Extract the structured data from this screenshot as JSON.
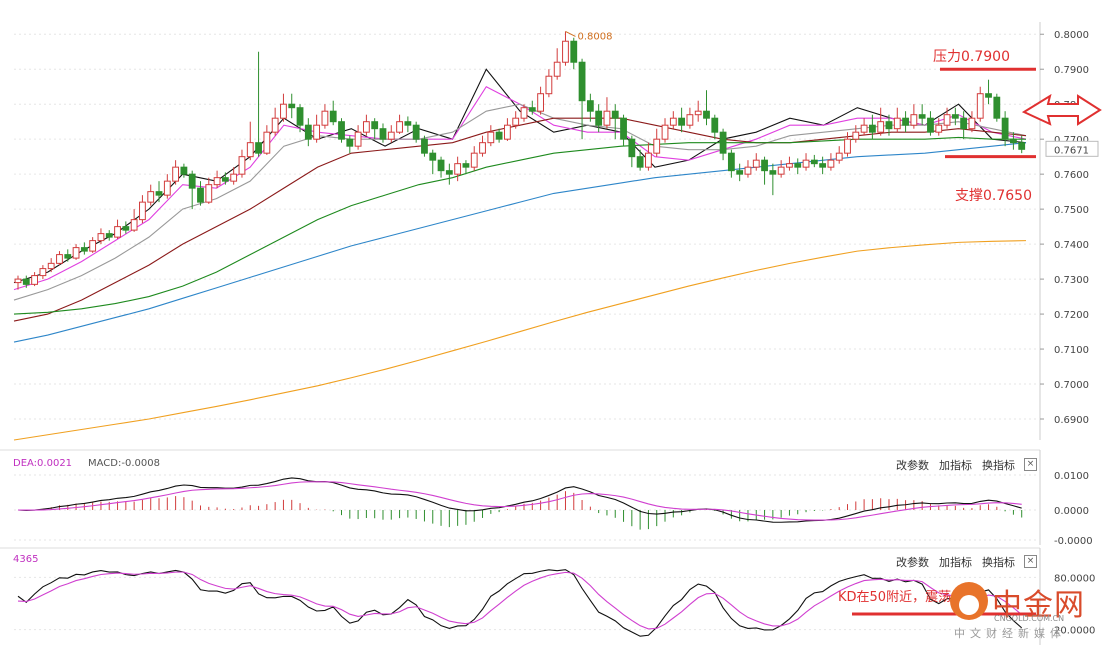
{
  "chart_data": {
    "type": "candlestick",
    "symbol_pair_note": "",
    "price_axis": {
      "ticks": [
        "0.8000",
        "0.7900",
        "0.7800",
        "0.7700",
        "0.7600",
        "0.7500",
        "0.7400",
        "0.7300",
        "0.7200",
        "0.7100",
        "0.7000",
        "0.6900"
      ],
      "range": [
        0.684,
        0.8035
      ],
      "current_price_label": "0.7671",
      "current_price": 0.7671
    },
    "high_marker": {
      "label": "0.8008",
      "value": 0.8008
    },
    "annotations": {
      "resistance": {
        "text": "压力0.7900",
        "value": 0.79
      },
      "support": {
        "text": "支撑0.7650",
        "value": 0.765
      },
      "kd_note": "KD在50附近，震荡"
    },
    "candles_approx": [
      [
        0.729,
        0.73,
        0.727,
        0.731
      ],
      [
        0.73,
        0.7285,
        0.7275,
        0.731
      ],
      [
        0.7285,
        0.731,
        0.728,
        0.732
      ],
      [
        0.731,
        0.733,
        0.73,
        0.734
      ],
      [
        0.733,
        0.7345,
        0.732,
        0.736
      ],
      [
        0.7345,
        0.737,
        0.734,
        0.738
      ],
      [
        0.737,
        0.736,
        0.735,
        0.7385
      ],
      [
        0.736,
        0.739,
        0.7355,
        0.74
      ],
      [
        0.739,
        0.738,
        0.737,
        0.7405
      ],
      [
        0.738,
        0.741,
        0.7375,
        0.742
      ],
      [
        0.741,
        0.743,
        0.74,
        0.7445
      ],
      [
        0.743,
        0.742,
        0.741,
        0.744
      ],
      [
        0.742,
        0.745,
        0.7415,
        0.747
      ],
      [
        0.745,
        0.744,
        0.743,
        0.7465
      ],
      [
        0.744,
        0.747,
        0.7435,
        0.75
      ],
      [
        0.747,
        0.752,
        0.746,
        0.754
      ],
      [
        0.752,
        0.755,
        0.751,
        0.757
      ],
      [
        0.755,
        0.754,
        0.752,
        0.758
      ],
      [
        0.754,
        0.758,
        0.753,
        0.76
      ],
      [
        0.758,
        0.762,
        0.757,
        0.764
      ],
      [
        0.762,
        0.76,
        0.759,
        0.763
      ],
      [
        0.76,
        0.756,
        0.75,
        0.761
      ],
      [
        0.756,
        0.752,
        0.751,
        0.758
      ],
      [
        0.752,
        0.757,
        0.7515,
        0.759
      ],
      [
        0.757,
        0.759,
        0.756,
        0.761
      ],
      [
        0.759,
        0.758,
        0.757,
        0.7605
      ],
      [
        0.758,
        0.76,
        0.757,
        0.762
      ],
      [
        0.76,
        0.765,
        0.759,
        0.767
      ],
      [
        0.765,
        0.769,
        0.764,
        0.775
      ],
      [
        0.769,
        0.766,
        0.765,
        0.795
      ],
      [
        0.766,
        0.772,
        0.7655,
        0.774
      ],
      [
        0.772,
        0.776,
        0.771,
        0.779
      ],
      [
        0.776,
        0.78,
        0.775,
        0.783
      ],
      [
        0.78,
        0.779,
        0.776,
        0.783
      ],
      [
        0.779,
        0.774,
        0.772,
        0.78
      ],
      [
        0.774,
        0.77,
        0.768,
        0.776
      ],
      [
        0.77,
        0.774,
        0.769,
        0.777
      ],
      [
        0.774,
        0.778,
        0.773,
        0.78
      ],
      [
        0.778,
        0.775,
        0.774,
        0.781
      ],
      [
        0.775,
        0.77,
        0.769,
        0.776
      ],
      [
        0.77,
        0.768,
        0.766,
        0.771
      ],
      [
        0.768,
        0.772,
        0.767,
        0.774
      ],
      [
        0.772,
        0.775,
        0.771,
        0.777
      ],
      [
        0.775,
        0.773,
        0.77,
        0.776
      ],
      [
        0.773,
        0.77,
        0.769,
        0.7745
      ],
      [
        0.77,
        0.772,
        0.769,
        0.774
      ],
      [
        0.772,
        0.775,
        0.7715,
        0.777
      ],
      [
        0.775,
        0.774,
        0.772,
        0.7765
      ],
      [
        0.774,
        0.77,
        0.769,
        0.775
      ],
      [
        0.77,
        0.766,
        0.765,
        0.771
      ],
      [
        0.766,
        0.764,
        0.76,
        0.767
      ],
      [
        0.764,
        0.761,
        0.759,
        0.765
      ],
      [
        0.761,
        0.76,
        0.757,
        0.763
      ],
      [
        0.76,
        0.763,
        0.758,
        0.765
      ],
      [
        0.763,
        0.762,
        0.76,
        0.764
      ],
      [
        0.762,
        0.766,
        0.761,
        0.768
      ],
      [
        0.766,
        0.769,
        0.765,
        0.771
      ],
      [
        0.769,
        0.772,
        0.768,
        0.774
      ],
      [
        0.772,
        0.77,
        0.769,
        0.773
      ],
      [
        0.77,
        0.774,
        0.7695,
        0.776
      ],
      [
        0.774,
        0.776,
        0.773,
        0.778
      ],
      [
        0.776,
        0.779,
        0.775,
        0.78
      ],
      [
        0.779,
        0.778,
        0.777,
        0.781
      ],
      [
        0.778,
        0.783,
        0.777,
        0.785
      ],
      [
        0.783,
        0.788,
        0.782,
        0.79
      ],
      [
        0.788,
        0.792,
        0.787,
        0.796
      ],
      [
        0.792,
        0.798,
        0.791,
        0.8008
      ],
      [
        0.798,
        0.792,
        0.79,
        0.799
      ],
      [
        0.792,
        0.781,
        0.77,
        0.793
      ],
      [
        0.781,
        0.778,
        0.775,
        0.783
      ],
      [
        0.778,
        0.774,
        0.772,
        0.78
      ],
      [
        0.774,
        0.778,
        0.773,
        0.782
      ],
      [
        0.778,
        0.776,
        0.77,
        0.78
      ],
      [
        0.776,
        0.77,
        0.768,
        0.777
      ],
      [
        0.77,
        0.765,
        0.762,
        0.771
      ],
      [
        0.765,
        0.762,
        0.761,
        0.767
      ],
      [
        0.762,
        0.766,
        0.761,
        0.769
      ],
      [
        0.766,
        0.77,
        0.765,
        0.773
      ],
      [
        0.77,
        0.774,
        0.769,
        0.776
      ],
      [
        0.774,
        0.776,
        0.773,
        0.778
      ],
      [
        0.776,
        0.774,
        0.772,
        0.779
      ],
      [
        0.774,
        0.777,
        0.773,
        0.779
      ],
      [
        0.777,
        0.778,
        0.775,
        0.781
      ],
      [
        0.778,
        0.776,
        0.774,
        0.784
      ],
      [
        0.776,
        0.772,
        0.77,
        0.777
      ],
      [
        0.772,
        0.766,
        0.764,
        0.773
      ],
      [
        0.766,
        0.761,
        0.759,
        0.767
      ],
      [
        0.761,
        0.76,
        0.758,
        0.763
      ],
      [
        0.76,
        0.762,
        0.759,
        0.764
      ],
      [
        0.762,
        0.764,
        0.761,
        0.766
      ],
      [
        0.764,
        0.761,
        0.757,
        0.765
      ],
      [
        0.761,
        0.76,
        0.754,
        0.763
      ],
      [
        0.76,
        0.762,
        0.759,
        0.764
      ],
      [
        0.762,
        0.763,
        0.761,
        0.765
      ],
      [
        0.763,
        0.762,
        0.76,
        0.7645
      ],
      [
        0.762,
        0.764,
        0.761,
        0.766
      ],
      [
        0.764,
        0.763,
        0.762,
        0.7655
      ],
      [
        0.763,
        0.762,
        0.76,
        0.765
      ],
      [
        0.762,
        0.764,
        0.761,
        0.766
      ],
      [
        0.764,
        0.766,
        0.763,
        0.768
      ],
      [
        0.766,
        0.77,
        0.765,
        0.772
      ],
      [
        0.77,
        0.772,
        0.769,
        0.774
      ],
      [
        0.772,
        0.774,
        0.771,
        0.776
      ],
      [
        0.774,
        0.772,
        0.77,
        0.777
      ],
      [
        0.772,
        0.775,
        0.771,
        0.779
      ],
      [
        0.775,
        0.773,
        0.771,
        0.777
      ],
      [
        0.773,
        0.776,
        0.772,
        0.779
      ],
      [
        0.776,
        0.774,
        0.772,
        0.778
      ],
      [
        0.774,
        0.777,
        0.773,
        0.78
      ],
      [
        0.777,
        0.776,
        0.774,
        0.78
      ],
      [
        0.776,
        0.772,
        0.771,
        0.778
      ],
      [
        0.772,
        0.774,
        0.771,
        0.776
      ],
      [
        0.774,
        0.777,
        0.773,
        0.779
      ],
      [
        0.777,
        0.776,
        0.774,
        0.779
      ],
      [
        0.776,
        0.773,
        0.77,
        0.778
      ],
      [
        0.773,
        0.776,
        0.772,
        0.778
      ],
      [
        0.776,
        0.783,
        0.775,
        0.785
      ],
      [
        0.783,
        0.782,
        0.78,
        0.787
      ],
      [
        0.782,
        0.776,
        0.775,
        0.783
      ],
      [
        0.776,
        0.77,
        0.768,
        0.778
      ],
      [
        0.77,
        0.769,
        0.767,
        0.772
      ],
      [
        0.769,
        0.7671,
        0.766,
        0.771
      ]
    ],
    "ma_lines": [
      {
        "color": "#111111",
        "points": [
          0.729,
          0.732,
          0.738,
          0.743,
          0.75,
          0.76,
          0.758,
          0.765,
          0.776,
          0.77,
          0.773,
          0.768,
          0.773,
          0.77,
          0.79,
          0.778,
          0.772,
          0.774,
          0.772,
          0.762,
          0.764,
          0.77,
          0.772,
          0.776,
          0.774,
          0.779,
          0.776,
          0.774,
          0.78,
          0.77,
          0.769
        ]
      },
      {
        "color": "#e040e0",
        "points": [
          0.727,
          0.73,
          0.735,
          0.741,
          0.747,
          0.757,
          0.756,
          0.762,
          0.774,
          0.772,
          0.771,
          0.77,
          0.77,
          0.77,
          0.785,
          0.78,
          0.774,
          0.772,
          0.772,
          0.765,
          0.764,
          0.767,
          0.77,
          0.774,
          0.774,
          0.776,
          0.776,
          0.774,
          0.777,
          0.772,
          0.77
        ]
      },
      {
        "color": "#999999",
        "points": [
          0.724,
          0.727,
          0.731,
          0.736,
          0.742,
          0.75,
          0.753,
          0.758,
          0.768,
          0.771,
          0.77,
          0.77,
          0.77,
          0.772,
          0.778,
          0.78,
          0.776,
          0.774,
          0.773,
          0.768,
          0.767,
          0.767,
          0.768,
          0.771,
          0.772,
          0.773,
          0.774,
          0.774,
          0.775,
          0.773,
          0.771
        ]
      },
      {
        "color": "#8b1a1a",
        "points": [
          0.718,
          0.72,
          0.724,
          0.729,
          0.734,
          0.74,
          0.745,
          0.75,
          0.756,
          0.762,
          0.766,
          0.767,
          0.768,
          0.769,
          0.772,
          0.774,
          0.776,
          0.776,
          0.776,
          0.774,
          0.772,
          0.77,
          0.769,
          0.769,
          0.77,
          0.771,
          0.772,
          0.772,
          0.773,
          0.772,
          0.771
        ]
      },
      {
        "color": "#1e8a1e",
        "points": [
          0.72,
          0.7205,
          0.7215,
          0.723,
          0.725,
          0.728,
          0.732,
          0.737,
          0.742,
          0.747,
          0.751,
          0.754,
          0.757,
          0.759,
          0.762,
          0.764,
          0.766,
          0.767,
          0.768,
          0.7685,
          0.769,
          0.769,
          0.769,
          0.769,
          0.7695,
          0.77,
          0.77,
          0.77,
          0.7705,
          0.77,
          0.77
        ]
      },
      {
        "color": "#2e86c9",
        "points": [
          0.712,
          0.714,
          0.7165,
          0.719,
          0.7215,
          0.7245,
          0.7275,
          0.7305,
          0.7335,
          0.7365,
          0.7395,
          0.742,
          0.7445,
          0.747,
          0.7495,
          0.752,
          0.7545,
          0.756,
          0.7575,
          0.759,
          0.76,
          0.761,
          0.762,
          0.763,
          0.764,
          0.765,
          0.7655,
          0.766,
          0.767,
          0.768,
          0.769
        ]
      },
      {
        "color": "#f0a020",
        "points": [
          0.684,
          0.6855,
          0.687,
          0.6885,
          0.69,
          0.6918,
          0.6936,
          0.6955,
          0.6975,
          0.6995,
          0.7018,
          0.7042,
          0.7068,
          0.7095,
          0.7122,
          0.715,
          0.7178,
          0.7205,
          0.723,
          0.7255,
          0.728,
          0.7303,
          0.7325,
          0.7345,
          0.7363,
          0.738,
          0.739,
          0.7398,
          0.7405,
          0.7408,
          0.741
        ]
      }
    ],
    "macd_panel": {
      "label_dea": "DEA:0.0021",
      "label_macd": "MACD:-0.0008",
      "ticks": [
        "0.0100",
        "0.0000",
        "-0.0000"
      ],
      "buttons": [
        "改参数",
        "加指标",
        "换指标"
      ],
      "close_label": "×"
    },
    "kd_panel": {
      "label": "4365",
      "ticks": [
        "80.0000",
        "20.0000"
      ],
      "buttons": [
        "改参数",
        "加指标",
        "换指标"
      ],
      "close_label": "×"
    },
    "colors": {
      "up": "#d23c3c",
      "down": "#2f8f2f",
      "resistance_line": "#e03030",
      "grid": "#e6e6e6"
    }
  },
  "brand": {
    "name": "中金网",
    "url": "CNGOLD.COM.CN",
    "tagline": "中文财经新媒体"
  }
}
